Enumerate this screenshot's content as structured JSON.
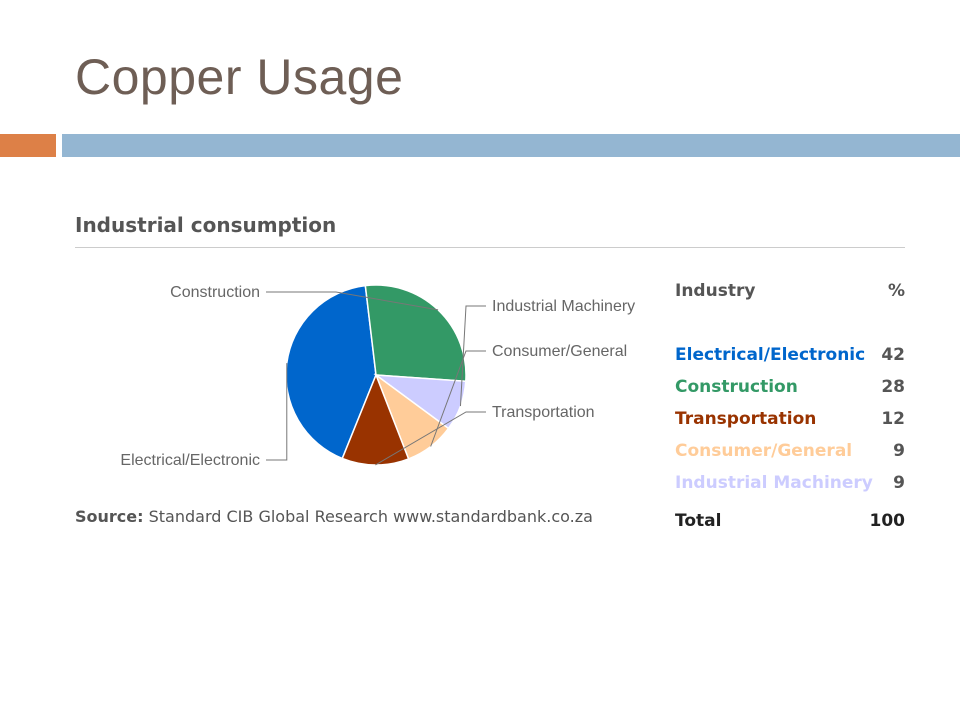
{
  "slide": {
    "title": "Copper Usage",
    "accent_colors": {
      "orange": "#dd8047",
      "blue": "#94b6d2"
    }
  },
  "chart_data": {
    "type": "pie",
    "title": "Industrial consumption",
    "categories": [
      "Electrical/Electronic",
      "Construction",
      "Industrial Machinery",
      "Consumer/General",
      "Transportation"
    ],
    "values": [
      42,
      28,
      9,
      9,
      12
    ],
    "colors": [
      "#0066cc",
      "#339966",
      "#ccccff",
      "#ffcc99",
      "#993300"
    ],
    "label_lines": true
  },
  "source": {
    "prefix": "Source:",
    "text": "Standard CIB Global Research www.standardbank.co.za"
  },
  "table": {
    "header": {
      "industry": "Industry",
      "pct": "%"
    },
    "rows": [
      {
        "name": "Electrical/Electronic",
        "value": "42",
        "color": "#0066cc"
      },
      {
        "name": "Construction",
        "value": "28",
        "color": "#339966"
      },
      {
        "name": "Transportation",
        "value": "12",
        "color": "#993300"
      },
      {
        "name": "Consumer/General",
        "value": "9",
        "color": "#ffcc99"
      },
      {
        "name": "Industrial Machinery",
        "value": "9",
        "color": "#ccccff"
      }
    ],
    "total": {
      "label": "Total",
      "value": "100"
    }
  }
}
